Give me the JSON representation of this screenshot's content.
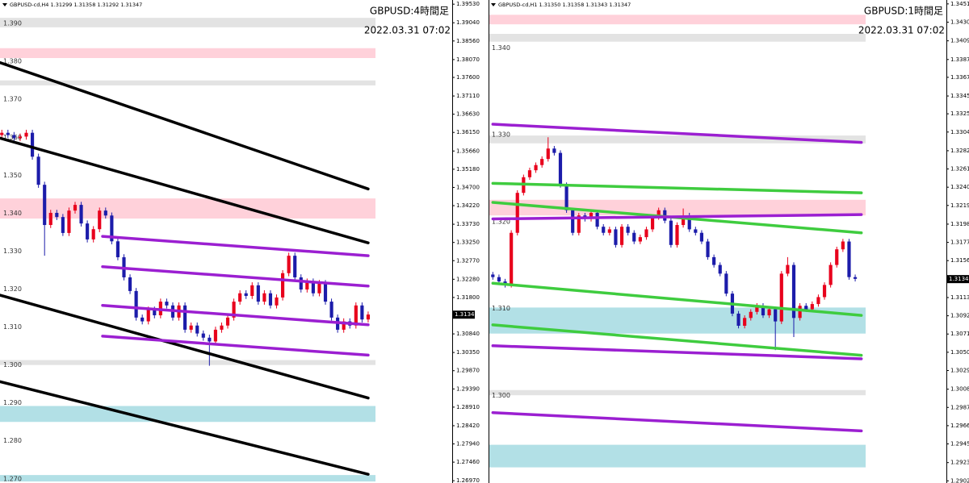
{
  "chart_data": [
    {
      "type": "candlestick",
      "header": "GBPUSD-cd,H4  1.31299 1.31358 1.31292 1.31347",
      "title": "GBPUSD:4時間足",
      "subtitle": "2022.03.31 07:02",
      "xlim": [
        -0.3,
        61.2
      ],
      "ylim": [
        1.2691,
        1.3964
      ],
      "yticks": [
        {
          "value": 1.3953,
          "label": "1.39530"
        },
        {
          "value": 1.3904,
          "label": "1.39040"
        },
        {
          "value": 1.3856,
          "label": "1.38560"
        },
        {
          "value": 1.3807,
          "label": "1.38070"
        },
        {
          "value": 1.376,
          "label": "1.37600"
        },
        {
          "value": 1.3711,
          "label": "1.37110"
        },
        {
          "value": 1.3663,
          "label": "1.36630"
        },
        {
          "value": 1.3615,
          "label": "1.36150"
        },
        {
          "value": 1.3566,
          "label": "1.35660"
        },
        {
          "value": 1.3518,
          "label": "1.35180"
        },
        {
          "value": 1.347,
          "label": "1.34700"
        },
        {
          "value": 1.3422,
          "label": "1.34220"
        },
        {
          "value": 1.3373,
          "label": "1.33730"
        },
        {
          "value": 1.3325,
          "label": "1.33250"
        },
        {
          "value": 1.3277,
          "label": "1.32770"
        },
        {
          "value": 1.3228,
          "label": "1.32280"
        },
        {
          "value": 1.318,
          "label": "1.31800"
        },
        {
          "value": 1.3084,
          "label": "1.30840"
        },
        {
          "value": 1.3035,
          "label": "1.30350"
        },
        {
          "value": 1.2987,
          "label": "1.29870"
        },
        {
          "value": 1.2939,
          "label": "1.29390"
        },
        {
          "value": 1.2891,
          "label": "1.28910"
        },
        {
          "value": 1.2842,
          "label": "1.28420"
        },
        {
          "value": 1.2794,
          "label": "1.27940"
        },
        {
          "value": 1.2746,
          "label": "1.27460"
        },
        {
          "value": 1.2697,
          "label": "1.26970"
        }
      ],
      "levels": [
        {
          "value": 1.39,
          "label": "1.390"
        },
        {
          "value": 1.38,
          "label": "1.380"
        },
        {
          "value": 1.37,
          "label": "1.370"
        },
        {
          "value": 1.36,
          "label": "1.360"
        },
        {
          "value": 1.35,
          "label": "1.350"
        },
        {
          "value": 1.34,
          "label": "1.340"
        },
        {
          "value": 1.33,
          "label": "1.330"
        },
        {
          "value": 1.32,
          "label": "1.320"
        },
        {
          "value": 1.31,
          "label": "1.310"
        },
        {
          "value": 1.3,
          "label": "1.300"
        },
        {
          "value": 1.29,
          "label": "1.290"
        },
        {
          "value": 1.28,
          "label": "1.280"
        },
        {
          "value": 1.27,
          "label": "1.270"
        }
      ],
      "last_price": 1.31347,
      "up_color": "#e8001c",
      "down_color": "#1c1caa",
      "zones": [
        {
          "range": [
            1.3917,
            1.3892
          ],
          "color": "#e3e3e3"
        },
        {
          "range": [
            1.3837,
            1.3811
          ],
          "color": "#ffd1da"
        },
        {
          "range": [
            1.3752,
            1.3739
          ],
          "color": "#e3e3e3"
        },
        {
          "range": [
            1.3441,
            1.3388
          ],
          "color": "#ffd1da"
        },
        {
          "range": [
            1.3015,
            1.3002
          ],
          "color": "#e3e3e3"
        },
        {
          "range": [
            1.2894,
            1.2852
          ],
          "color": "#b2e0e6"
        },
        {
          "range": [
            1.2712,
            1.2695
          ],
          "color": "#b2e0e6"
        }
      ],
      "trend_lines": [
        {
          "x": [
            -0.3,
            60
          ],
          "y": [
            1.3799,
            1.3466
          ],
          "color": "#000000"
        },
        {
          "x": [
            -0.3,
            60
          ],
          "y": [
            1.36,
            1.3324
          ],
          "color": "#000000"
        },
        {
          "x": [
            -0.3,
            60
          ],
          "y": [
            1.3186,
            1.2915
          ],
          "color": "#000000"
        },
        {
          "x": [
            -0.3,
            60
          ],
          "y": [
            1.2958,
            1.2714
          ],
          "color": "#000000"
        },
        {
          "x": [
            16.5,
            60
          ],
          "y": [
            1.3341,
            1.329
          ],
          "color": "#9b1fd1"
        },
        {
          "x": [
            16.5,
            60
          ],
          "y": [
            1.3261,
            1.321
          ],
          "color": "#9b1fd1"
        },
        {
          "x": [
            16.5,
            60
          ],
          "y": [
            1.3159,
            1.3108
          ],
          "color": "#9b1fd1"
        },
        {
          "x": [
            16.5,
            60
          ],
          "y": [
            1.3078,
            1.3028
          ],
          "color": "#9b1fd1"
        }
      ],
      "candles": {
        "open": [
          1.3608,
          1.3614,
          1.3608,
          1.36,
          1.3604,
          1.3614,
          1.3551,
          1.3477,
          1.3371,
          1.3403,
          1.3392,
          1.335,
          1.3409,
          1.3424,
          1.3375,
          1.3333,
          1.336,
          1.3409,
          1.3396,
          1.3328,
          1.3286,
          1.3233,
          1.3197,
          1.3127,
          1.3117,
          1.3148,
          1.3133,
          1.3169,
          1.3159,
          1.3127,
          1.3159,
          1.3095,
          1.3106,
          1.3085,
          1.3074,
          1.3064,
          1.3095,
          1.3106,
          1.3127,
          1.3169,
          1.3191,
          1.3184,
          1.3212,
          1.3169,
          1.3191,
          1.3159,
          1.318,
          1.3244,
          1.329,
          1.3233,
          1.3201,
          1.3222,
          1.3191,
          1.3218,
          1.3169,
          1.3127,
          1.3095,
          1.3117,
          1.3106,
          1.3159,
          1.3122
        ],
        "high": [
          1.3622,
          1.3622,
          1.3616,
          1.3612,
          1.3622,
          1.3622,
          1.3559,
          1.3485,
          1.3411,
          1.3411,
          1.34,
          1.3417,
          1.3432,
          1.3432,
          1.3383,
          1.3368,
          1.3417,
          1.3417,
          1.3404,
          1.3336,
          1.3294,
          1.3241,
          1.3205,
          1.3135,
          1.3156,
          1.3156,
          1.3177,
          1.3177,
          1.3167,
          1.3167,
          1.3167,
          1.3114,
          1.3114,
          1.3093,
          1.3082,
          1.3103,
          1.3114,
          1.3135,
          1.3177,
          1.3199,
          1.3199,
          1.322,
          1.322,
          1.3199,
          1.3199,
          1.3188,
          1.3252,
          1.3298,
          1.3298,
          1.3241,
          1.323,
          1.323,
          1.3226,
          1.3226,
          1.3177,
          1.3135,
          1.3125,
          1.3125,
          1.3167,
          1.3167,
          1.3143
        ],
        "low": [
          1.36,
          1.36,
          1.3592,
          1.3592,
          1.3596,
          1.3543,
          1.3469,
          1.329,
          1.3363,
          1.3384,
          1.3342,
          1.3342,
          1.3401,
          1.3367,
          1.3325,
          1.3325,
          1.3352,
          1.3388,
          1.332,
          1.3278,
          1.3225,
          1.3189,
          1.3119,
          1.3109,
          1.3109,
          1.3125,
          1.3125,
          1.3151,
          1.3119,
          1.3119,
          1.3087,
          1.3087,
          1.3077,
          1.3066,
          1.3,
          1.3056,
          1.3087,
          1.3098,
          1.3119,
          1.3161,
          1.3176,
          1.3176,
          1.3161,
          1.3161,
          1.3151,
          1.3151,
          1.3172,
          1.3236,
          1.3225,
          1.3193,
          1.3193,
          1.3183,
          1.3183,
          1.3161,
          1.3119,
          1.3087,
          1.3087,
          1.3098,
          1.3098,
          1.3114,
          1.3114
        ],
        "close": [
          1.3614,
          1.3608,
          1.36,
          1.3604,
          1.3614,
          1.3551,
          1.3477,
          1.3371,
          1.3403,
          1.3392,
          1.335,
          1.3409,
          1.3424,
          1.3375,
          1.3333,
          1.336,
          1.3409,
          1.3396,
          1.3328,
          1.3286,
          1.3233,
          1.3197,
          1.3127,
          1.3117,
          1.3148,
          1.3133,
          1.3169,
          1.3159,
          1.3127,
          1.3159,
          1.3095,
          1.3106,
          1.3085,
          1.3074,
          1.3064,
          1.3095,
          1.3106,
          1.3127,
          1.3169,
          1.3191,
          1.3184,
          1.3212,
          1.3169,
          1.3191,
          1.3159,
          1.318,
          1.3244,
          1.329,
          1.3233,
          1.3201,
          1.3222,
          1.3191,
          1.3218,
          1.3169,
          1.3127,
          1.3095,
          1.3117,
          1.3106,
          1.3159,
          1.3122,
          1.3135
        ]
      }
    },
    {
      "type": "candlestick",
      "header": "GBPUSD-cd,H1  1.31350 1.31358 1.31343 1.31347",
      "title": "GBPUSD:1時間足",
      "subtitle": "2022.03.31 07:02",
      "xlim": [
        -0.7,
        60.7
      ],
      "ylim": [
        1.29,
        1.3456
      ],
      "yticks": [
        1.34515,
        {
          "value": 1.34305,
          "label": "1.34305"
        },
        {
          "value": 1.3409,
          "label": "1.34090"
        },
        1.33875,
        {
          "value": 1.3367,
          "label": "1.33670"
        },
        1.33455,
        {
          "value": 1.3325,
          "label": "1.33250"
        },
        {
          "value": 1.3304,
          "label": "1.33040"
        },
        1.32825,
        1.32615,
        1.32405,
        1.32195,
        {
          "value": 1.3198,
          "label": "1.31980"
        },
        {
          "value": 1.3177,
          "label": "1.31770"
        },
        {
          "value": 1.3156,
          "label": "1.31560"
        },
        1.31135,
        1.30925,
        1.30715,
        1.30505,
        1.30295,
        {
          "value": 1.3008,
          "label": "1.30080"
        },
        {
          "value": 1.2987,
          "label": "1.29870"
        },
        {
          "value": 1.2966,
          "label": "1.29660"
        },
        {
          "value": 1.2945,
          "label": "1.29450"
        },
        1.29235,
        1.29025
      ],
      "levels": [
        {
          "value": 1.34,
          "label": "1.340"
        },
        {
          "value": 1.33,
          "label": "1.330"
        },
        {
          "value": 1.32,
          "label": "1.320"
        },
        {
          "value": 1.31,
          "label": "1.310"
        },
        {
          "value": 1.3,
          "label": "1.300"
        }
      ],
      "last_price": 1.31347,
      "up_color": "#e8001c",
      "down_color": "#1c1caa",
      "zones": [
        {
          "range": [
            1.3439,
            1.3428
          ],
          "color": "#ffd1da"
        },
        {
          "range": [
            1.3417,
            1.3408
          ],
          "color": "#e3e3e3"
        },
        {
          "range": [
            1.33,
            1.3291
          ],
          "color": "#e3e3e3"
        },
        {
          "range": [
            1.3226,
            1.3208
          ],
          "color": "#ffd1da"
        },
        {
          "range": [
            1.3102,
            1.3072
          ],
          "color": "#b2e0e6"
        },
        {
          "range": [
            1.3007,
            1.3001
          ],
          "color": "#e3e3e3"
        },
        {
          "range": [
            1.2944,
            1.2918
          ],
          "color": "#b2e0e6"
        }
      ],
      "trend_lines": [
        {
          "x": [
            0,
            60
          ],
          "y": [
            1.3313,
            1.3292
          ],
          "color": "#9b1fd1"
        },
        {
          "x": [
            0,
            60
          ],
          "y": [
            1.3245,
            1.3234
          ],
          "color": "#3fcc3f"
        },
        {
          "x": [
            0,
            60
          ],
          "y": [
            1.3223,
            1.3188
          ],
          "color": "#3fcc3f"
        },
        {
          "x": [
            0,
            60
          ],
          "y": [
            1.3204,
            1.3209
          ],
          "color": "#9b1fd1"
        },
        {
          "x": [
            0,
            60
          ],
          "y": [
            1.313,
            1.3093
          ],
          "color": "#3fcc3f"
        },
        {
          "x": [
            0,
            60
          ],
          "y": [
            1.3082,
            1.3047
          ],
          "color": "#3fcc3f"
        },
        {
          "x": [
            0,
            60
          ],
          "y": [
            1.3058,
            1.3043
          ],
          "color": "#9b1fd1"
        },
        {
          "x": [
            0,
            60
          ],
          "y": [
            1.2981,
            1.296
          ],
          "color": "#9b1fd1"
        }
      ],
      "candles": {
        "open": [
          1.314,
          1.3137,
          1.3132,
          1.3128,
          1.3188,
          1.3234,
          1.3252,
          1.326,
          1.3266,
          1.3273,
          1.3285,
          1.328,
          1.3243,
          1.3214,
          1.3188,
          1.3208,
          1.3204,
          1.3211,
          1.3195,
          1.3188,
          1.3192,
          1.3174,
          1.3195,
          1.3188,
          1.3178,
          1.3183,
          1.3192,
          1.3206,
          1.3214,
          1.3202,
          1.3174,
          1.3197,
          1.3208,
          1.3192,
          1.3188,
          1.3178,
          1.316,
          1.3151,
          1.3141,
          1.3118,
          1.3095,
          1.3081,
          1.309,
          1.3097,
          1.3104,
          1.3093,
          1.31,
          1.3086,
          1.3141,
          1.3151,
          1.309,
          1.3104,
          1.31,
          1.3106,
          1.3114,
          1.3128,
          1.3151,
          1.3169,
          1.3178,
          1.3137
        ],
        "high": [
          1.3143,
          1.314,
          1.3135,
          1.3191,
          1.3237,
          1.3255,
          1.3263,
          1.3269,
          1.3276,
          1.3298,
          1.3288,
          1.3283,
          1.3246,
          1.3217,
          1.3211,
          1.3211,
          1.3214,
          1.3214,
          1.3198,
          1.3195,
          1.3195,
          1.3198,
          1.3198,
          1.3191,
          1.3186,
          1.3195,
          1.3209,
          1.3217,
          1.3217,
          1.3205,
          1.32,
          1.3216,
          1.3211,
          1.3195,
          1.3191,
          1.3181,
          1.3163,
          1.3154,
          1.3144,
          1.3121,
          1.3098,
          1.3093,
          1.31,
          1.3107,
          1.3107,
          1.3103,
          1.3103,
          1.3144,
          1.316,
          1.3154,
          1.3107,
          1.3107,
          1.3109,
          1.3117,
          1.3131,
          1.3154,
          1.3172,
          1.3181,
          1.3181,
          1.314
        ],
        "low": [
          1.3134,
          1.3129,
          1.3125,
          1.3125,
          1.3185,
          1.3231,
          1.3249,
          1.3257,
          1.3263,
          1.327,
          1.3277,
          1.324,
          1.3211,
          1.3185,
          1.3185,
          1.3201,
          1.3201,
          1.3192,
          1.3185,
          1.3185,
          1.3171,
          1.3171,
          1.3185,
          1.3175,
          1.3175,
          1.318,
          1.3189,
          1.3203,
          1.3199,
          1.3171,
          1.3171,
          1.3194,
          1.3189,
          1.3185,
          1.3175,
          1.3157,
          1.3148,
          1.3138,
          1.3115,
          1.3092,
          1.3078,
          1.3078,
          1.3087,
          1.3094,
          1.309,
          1.309,
          1.3053,
          1.3083,
          1.3138,
          1.3068,
          1.3087,
          1.3097,
          1.3097,
          1.3103,
          1.3111,
          1.3125,
          1.3148,
          1.3166,
          1.3134,
          1.3132
        ],
        "close": [
          1.3137,
          1.3132,
          1.3128,
          1.3188,
          1.3234,
          1.3252,
          1.326,
          1.3266,
          1.3273,
          1.3285,
          1.328,
          1.3243,
          1.3214,
          1.3188,
          1.3208,
          1.3204,
          1.3211,
          1.3195,
          1.3188,
          1.3192,
          1.3174,
          1.3195,
          1.3188,
          1.3178,
          1.3183,
          1.3192,
          1.3206,
          1.3214,
          1.3202,
          1.3174,
          1.3197,
          1.3208,
          1.3192,
          1.3188,
          1.3178,
          1.316,
          1.3151,
          1.3141,
          1.3118,
          1.3095,
          1.3081,
          1.309,
          1.3097,
          1.3104,
          1.3093,
          1.31,
          1.3086,
          1.3141,
          1.3151,
          1.309,
          1.3104,
          1.31,
          1.3106,
          1.3114,
          1.3128,
          1.3151,
          1.3169,
          1.3178,
          1.3137,
          1.3135
        ]
      }
    }
  ]
}
